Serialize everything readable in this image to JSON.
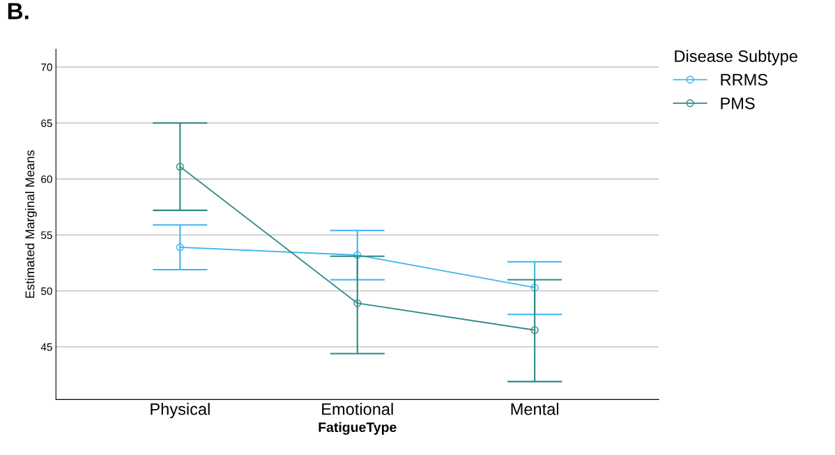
{
  "chart_data": {
    "type": "line",
    "title": "B.",
    "xlabel": "FatigueType",
    "ylabel": "Estimated Marginal Means",
    "legend_title": "Disease Subtype",
    "categories": [
      "Physical",
      "Emotional",
      "Mental"
    ],
    "series": [
      {
        "name": "RRMS",
        "color": "#3db5ef",
        "values": [
          53.9,
          53.2,
          50.3
        ],
        "errors": [
          [
            51.9,
            55.9
          ],
          [
            51.0,
            55.4
          ],
          [
            47.9,
            52.6
          ]
        ]
      },
      {
        "name": "PMS",
        "color": "#2b8a84",
        "values": [
          61.1,
          48.9,
          46.5
        ],
        "errors": [
          [
            57.2,
            65.0
          ],
          [
            44.4,
            53.1
          ],
          [
            41.9,
            51.0
          ]
        ]
      }
    ],
    "ylim": [
      40.3,
      71.6
    ],
    "yticks": [
      45,
      50,
      55,
      60,
      65,
      70
    ],
    "grid": "y",
    "legend": "top right",
    "marker": "circle",
    "line_style": "solid"
  }
}
